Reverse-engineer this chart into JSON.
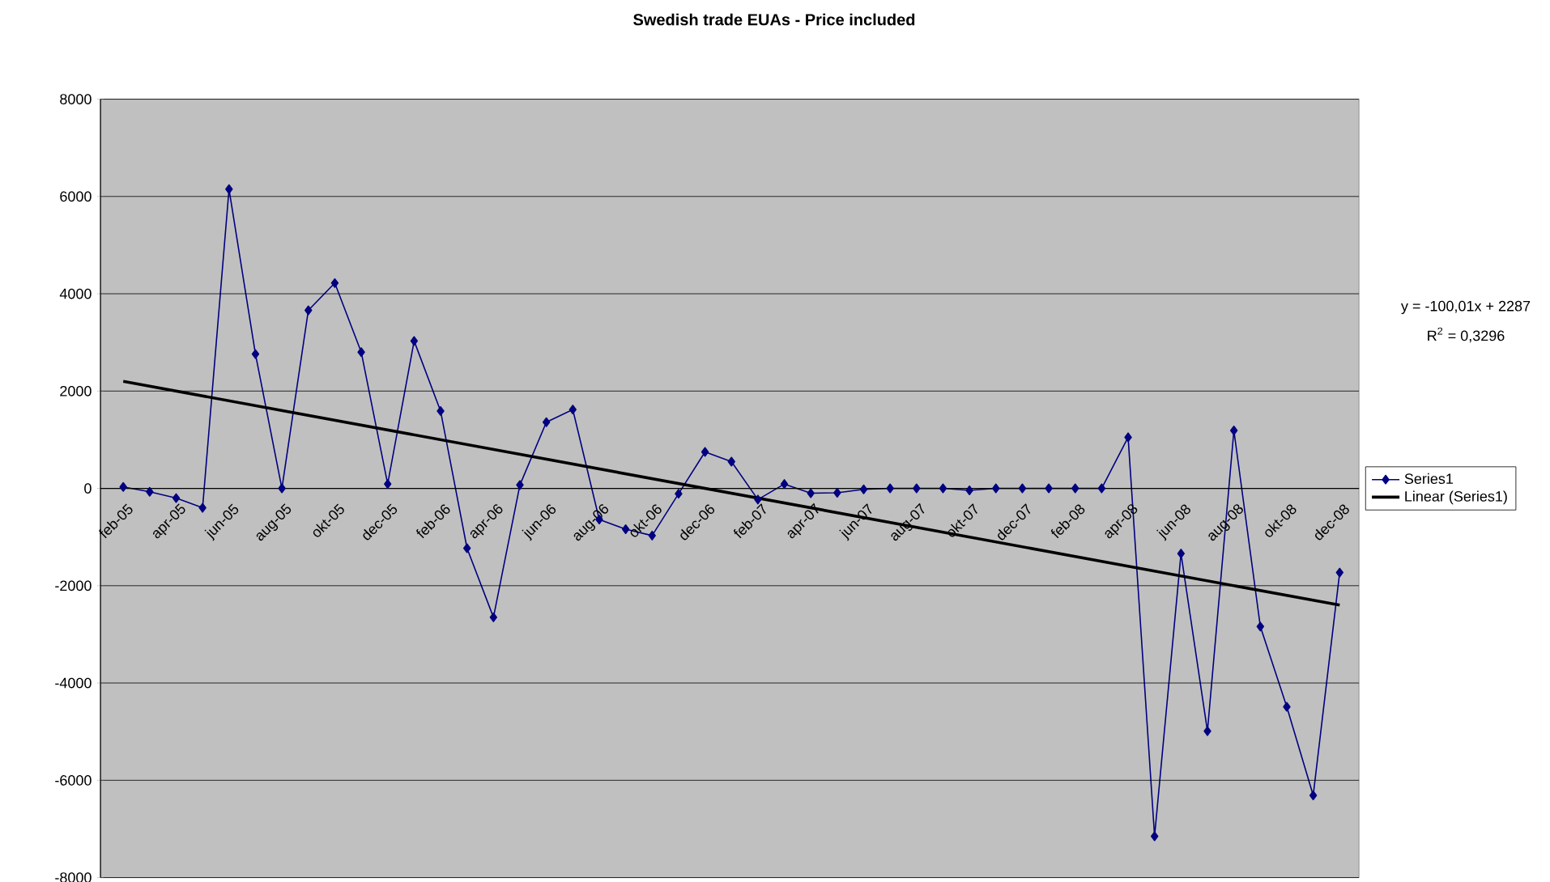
{
  "chart_data": {
    "type": "line",
    "title": "Swedish trade EUAs - Price included",
    "categories": [
      "feb-05",
      null,
      "apr-05",
      null,
      "jun-05",
      null,
      "aug-05",
      null,
      "okt-05",
      null,
      "dec-05",
      null,
      "feb-06",
      null,
      "apr-06",
      null,
      "jun-06",
      null,
      "aug-06",
      null,
      "okt-06",
      null,
      "dec-06",
      null,
      "feb-07",
      null,
      "apr-07",
      null,
      "jun-07",
      null,
      "aug-07",
      null,
      "okt-07",
      null,
      "dec-07",
      null,
      "feb-08",
      null,
      "apr-08",
      null,
      "jun-08",
      null,
      "aug-08",
      null,
      "okt-08",
      null,
      "dec-08"
    ],
    "series": [
      {
        "name": "Series1",
        "color": "#000080",
        "marker": "diamond",
        "values": [
          30,
          -70,
          -200,
          -400,
          6150,
          2760,
          0,
          3660,
          4220,
          2800,
          90,
          3030,
          1590,
          -1230,
          -2650,
          70,
          1360,
          1620,
          -640,
          -840,
          -970,
          -110,
          750,
          550,
          -230,
          90,
          -100,
          -90,
          -20,
          0,
          0,
          0,
          -40,
          0,
          0,
          0,
          0,
          0,
          1050,
          -7150,
          -1340,
          -4990,
          1190,
          -2840,
          -4490,
          -6310,
          -1730
        ]
      },
      {
        "name": "Linear (Series1)",
        "color": "#000000",
        "marker": "none",
        "values": [
          2200,
          null,
          null,
          null,
          null,
          null,
          null,
          null,
          null,
          null,
          null,
          null,
          null,
          null,
          null,
          null,
          null,
          null,
          null,
          null,
          null,
          null,
          null,
          null,
          null,
          null,
          null,
          null,
          null,
          null,
          null,
          null,
          null,
          null,
          null,
          null,
          null,
          null,
          null,
          null,
          null,
          null,
          null,
          null,
          null,
          null,
          -2400
        ]
      }
    ],
    "ylim": [
      -8000,
      8000
    ],
    "yticks": [
      -8000,
      -6000,
      -4000,
      -2000,
      0,
      2000,
      4000,
      6000,
      8000
    ],
    "grid": "y",
    "legend": "right",
    "line_style": "solid",
    "annotations": [
      "y = -100,01x + 2287",
      "R$^{2}$ = 0,3296"
    ]
  }
}
